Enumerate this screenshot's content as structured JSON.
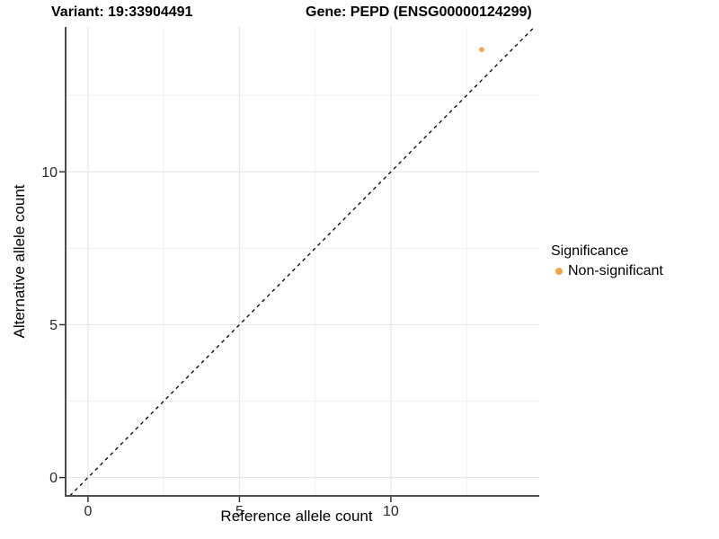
{
  "page": {
    "background": "#FFFFFF"
  },
  "chart_data": {
    "type": "scatter",
    "titles": {
      "left": "Variant: 19:33904491",
      "right": "Gene: PEPD (ENSG00000124299)"
    },
    "xlabel": "Reference allele count",
    "ylabel": "Alternative allele count",
    "x_ticks": [
      0,
      5,
      10
    ],
    "y_ticks": [
      0,
      5,
      10
    ],
    "x_minor_ticks": [
      2.5,
      7.5,
      12.5
    ],
    "y_minor_ticks": [
      2.5,
      7.5,
      12.5
    ],
    "xlim": [
      -0.74,
      14.9
    ],
    "ylim": [
      -0.6,
      14.74
    ],
    "grid": true,
    "series": [
      {
        "name": "Non-significant",
        "color": "#F9A242",
        "points": [
          {
            "x": 13,
            "y": 14
          }
        ]
      }
    ],
    "reference_line": {
      "type": "identity",
      "equation": "y = x",
      "style": "dashed",
      "color": "#000000"
    },
    "legend": {
      "title": "Significance",
      "position": "right",
      "entries": [
        {
          "label": "Non-significant",
          "color": "#F9A242"
        }
      ]
    }
  },
  "colors": {
    "background": "#FFFFFF",
    "grid_major": "#E4E4E4",
    "grid_minor": "#F0F0F0",
    "axis_line": "#4D4D4D",
    "tick_mark": "#333333",
    "tick_label": "#262626",
    "point": "#F9A242"
  }
}
